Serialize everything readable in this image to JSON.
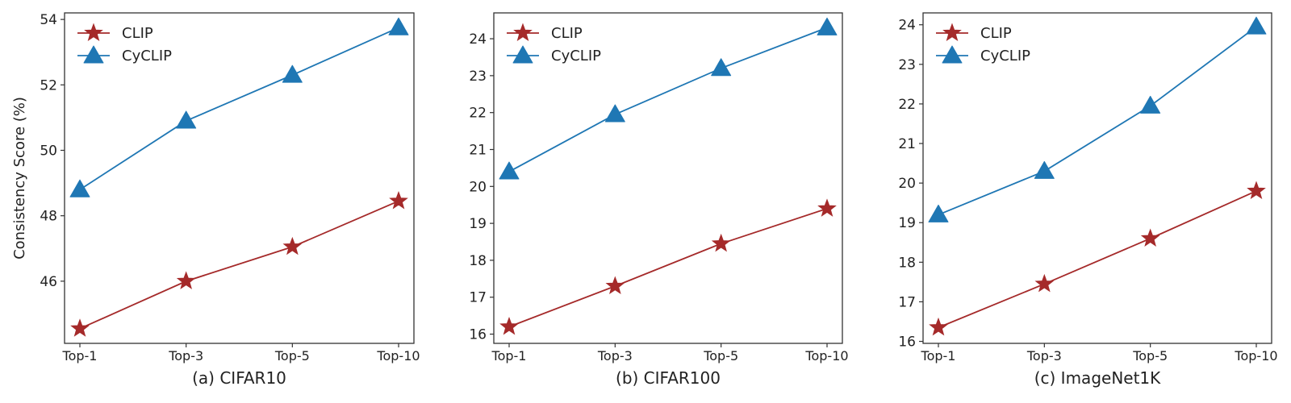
{
  "colors": {
    "clip": "#a52a2a",
    "cyclip": "#1f77b4",
    "axis": "#333333"
  },
  "chart_data": [
    {
      "type": "line",
      "title": "(a) CIFAR10",
      "xlabel": "",
      "ylabel": "Consistency Score (%)",
      "categories": [
        "Top-1",
        "Top-3",
        "Top-5",
        "Top-10"
      ],
      "ylim": [
        44.1,
        54.2
      ],
      "yticks": [
        46,
        48,
        50,
        52,
        54
      ],
      "grid": false,
      "legend_position": "top-left",
      "series": [
        {
          "name": "CLIP",
          "marker": "star",
          "values": [
            44.55,
            46.0,
            47.05,
            48.45
          ]
        },
        {
          "name": "CyCLIP",
          "marker": "triangle",
          "values": [
            48.8,
            50.9,
            52.3,
            53.75
          ]
        }
      ]
    },
    {
      "type": "line",
      "title": "(b) CIFAR100",
      "xlabel": "",
      "ylabel": "",
      "categories": [
        "Top-1",
        "Top-3",
        "Top-5",
        "Top-10"
      ],
      "ylim": [
        15.75,
        24.7
      ],
      "yticks": [
        16,
        17,
        18,
        19,
        20,
        21,
        22,
        23,
        24
      ],
      "grid": false,
      "legend_position": "top-left",
      "series": [
        {
          "name": "CLIP",
          "marker": "star",
          "values": [
            16.2,
            17.3,
            18.45,
            19.4
          ]
        },
        {
          "name": "CyCLIP",
          "marker": "triangle",
          "values": [
            20.4,
            21.95,
            23.2,
            24.3
          ]
        }
      ]
    },
    {
      "type": "line",
      "title": "(c) ImageNet1K",
      "xlabel": "",
      "ylabel": "",
      "categories": [
        "Top-1",
        "Top-3",
        "Top-5",
        "Top-10"
      ],
      "ylim": [
        15.95,
        24.3
      ],
      "yticks": [
        16,
        17,
        18,
        19,
        20,
        21,
        22,
        23,
        24
      ],
      "grid": false,
      "legend_position": "top-left",
      "series": [
        {
          "name": "CLIP",
          "marker": "star",
          "values": [
            16.35,
            17.45,
            18.6,
            19.8
          ]
        },
        {
          "name": "CyCLIP",
          "marker": "triangle",
          "values": [
            19.2,
            20.3,
            21.95,
            23.95
          ]
        }
      ]
    }
  ]
}
